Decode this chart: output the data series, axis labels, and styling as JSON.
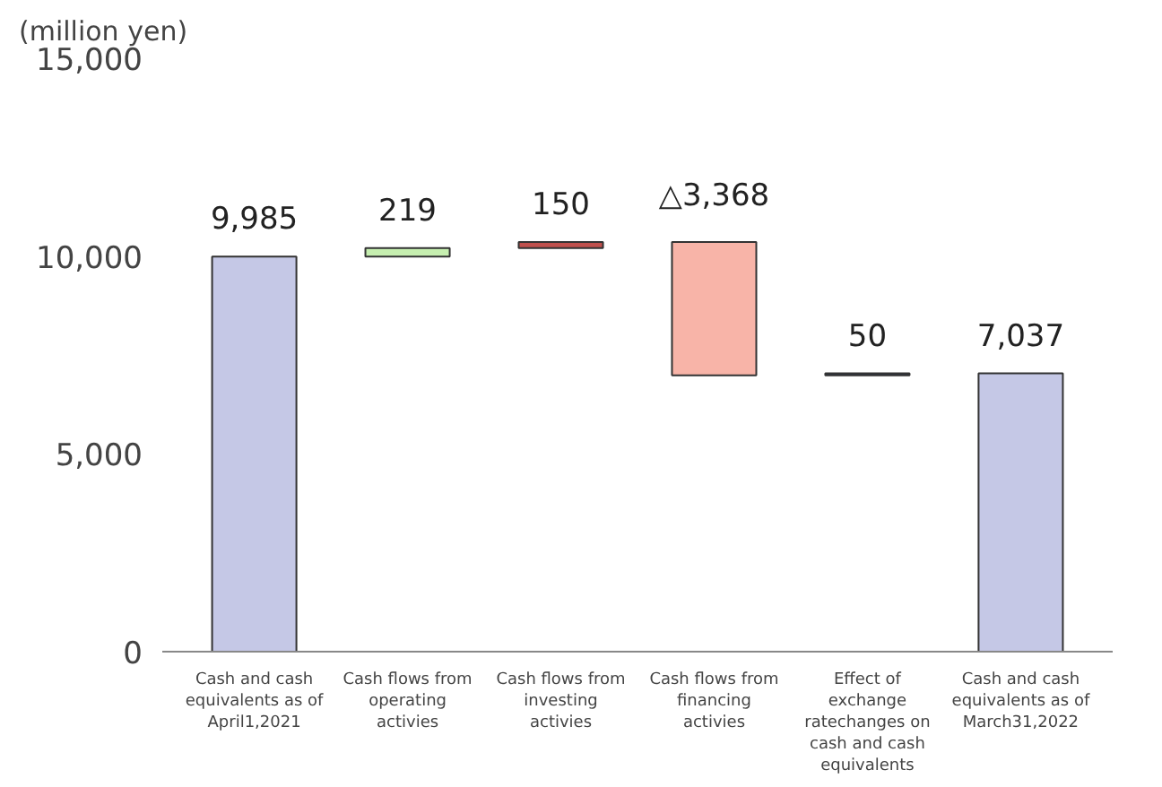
{
  "chart_data": {
    "type": "bar",
    "ylabel": "(million yen)",
    "categories": [
      "Cash and cash equivalents as of April1,2021",
      "Cash flows from operating activies",
      "Cash flows from investing activies",
      "Cash flows from financing activies",
      "Effect of exchange ratechanges on cash and cash equivalents",
      "Cash and cash equivalents as of March31,2022"
    ],
    "values": [
      9985,
      219,
      150,
      -3368,
      50,
      7037
    ],
    "base": [
      0,
      9985,
      10204,
      10354,
      6986,
      0
    ],
    "colors": [
      "#c5c8e6",
      "#c6efb0",
      "#c0504d",
      "#f8b4a8",
      "#1f2d50",
      "#c5c8e6"
    ],
    "value_labels": [
      "9,985",
      "219",
      "150",
      "△3,368",
      "50",
      "7,037"
    ],
    "ylim": [
      0,
      15000
    ],
    "yticks": [
      {
        "value": 0,
        "label": "0"
      },
      {
        "value": 5000,
        "label": "5,000"
      },
      {
        "value": 10000,
        "label": "10,000"
      },
      {
        "value": 15000,
        "label": "15,000"
      }
    ],
    "grid": false
  }
}
